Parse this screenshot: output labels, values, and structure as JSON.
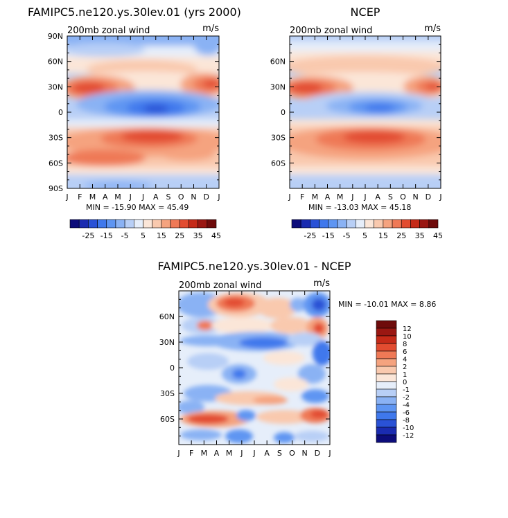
{
  "chart_data": [
    {
      "type": "heatmap",
      "title": "FAMIPC5.ne120.ys.30lev.01 (yrs 2000)",
      "subtitle_left": "200mb zonal wind",
      "subtitle_right": "m/s",
      "x_ticks": [
        "J",
        "F",
        "M",
        "A",
        "M",
        "J",
        "J",
        "A",
        "S",
        "O",
        "N",
        "D",
        "J"
      ],
      "y_ticks": [
        "90N",
        "60N",
        "30N",
        "0",
        "30S",
        "60S",
        "90S"
      ],
      "stats": "MIN = -15.90  MAX =  45.49",
      "colorbar_labels": [
        "-25",
        "-15",
        "-5",
        "5",
        "15",
        "25",
        "35",
        "45"
      ],
      "features": [
        {
          "lat": 30,
          "month": 2,
          "value": 42
        },
        {
          "lat": 30,
          "month": 11,
          "value": 40
        },
        {
          "lat": -30,
          "month": 7,
          "value": 45
        },
        {
          "lat": 5,
          "month": 7,
          "value": -15
        }
      ]
    },
    {
      "type": "heatmap",
      "title": "NCEP",
      "subtitle_left": "200mb zonal wind",
      "subtitle_right": "m/s",
      "x_ticks": [
        "J",
        "F",
        "M",
        "A",
        "M",
        "J",
        "J",
        "A",
        "S",
        "O",
        "N",
        "D",
        "J"
      ],
      "y_ticks": [
        "60N",
        "30N",
        "0",
        "30S",
        "60S"
      ],
      "stats": "MIN = -13.03  MAX =  45.18",
      "colorbar_labels": [
        "-25",
        "-15",
        "-5",
        "5",
        "15",
        "25",
        "35",
        "45"
      ],
      "features": [
        {
          "lat": 30,
          "month": 1,
          "value": 45
        },
        {
          "lat": 30,
          "month": 12,
          "value": 42
        },
        {
          "lat": -30,
          "month": 7,
          "value": 44
        },
        {
          "lat": 5,
          "month": 7,
          "value": -13
        }
      ]
    },
    {
      "type": "heatmap",
      "title": "FAMIPC5.ne120.ys.30lev.01 - NCEP",
      "subtitle_left": "200mb zonal wind",
      "subtitle_right": "m/s",
      "x_ticks": [
        "J",
        "F",
        "M",
        "A",
        "M",
        "J",
        "J",
        "A",
        "S",
        "O",
        "N",
        "D",
        "J"
      ],
      "y_ticks": [
        "60N",
        "30N",
        "0",
        "30S",
        "60S"
      ],
      "stats": "MIN = -10.01  MAX =   8.86",
      "colorbar_labels": [
        "12",
        "10",
        "8",
        "6",
        "4",
        "2",
        "1",
        "0",
        "-1",
        "-2",
        "-4",
        "-6",
        "-8",
        "-10",
        "-12"
      ],
      "features": [
        {
          "lat": 70,
          "month": 3.5,
          "value": 7
        },
        {
          "lat": -62,
          "month": 2.5,
          "value": 8
        },
        {
          "lat": -62,
          "month": 11,
          "value": 8
        },
        {
          "lat": 72,
          "month": 11.5,
          "value": -10
        },
        {
          "lat": 20,
          "month": 6,
          "value": -5
        }
      ]
    }
  ],
  "palette": {
    "levels": [
      "#0c0c7a",
      "#1a2bb0",
      "#2a52d6",
      "#3f78ec",
      "#5e95f2",
      "#8ab2f4",
      "#b8cff6",
      "#e6eefa",
      "#fbe6d8",
      "#f9c9ae",
      "#f5a37f",
      "#ef7956",
      "#e24c30",
      "#c52a18",
      "#9a1712",
      "#6e0b0b"
    ]
  }
}
